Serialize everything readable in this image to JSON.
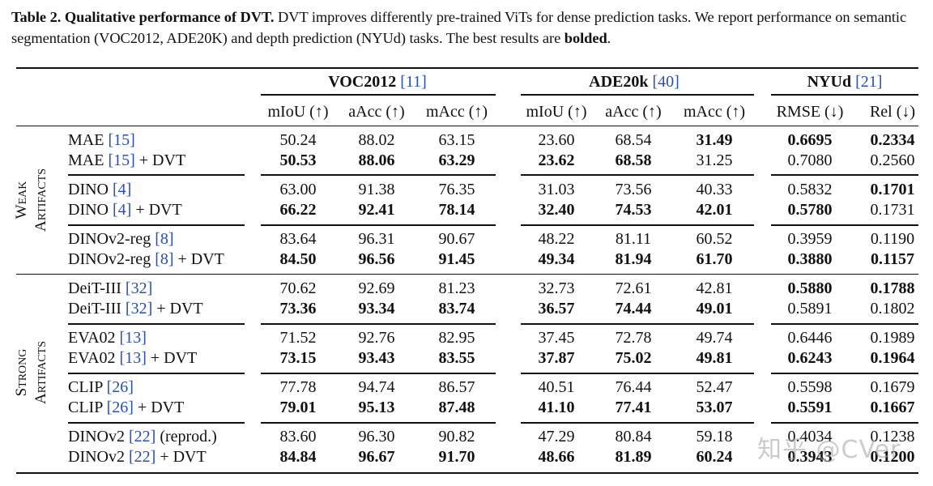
{
  "caption": {
    "label": "Table 2.",
    "title": "Qualitative performance of DVT.",
    "text_before_bold": "DVT improves differently pre-trained ViTs for dense prediction tasks. We report performance on semantic segmentation (VOC2012, ADE20K) and depth prediction (NYUd) tasks. The best results are",
    "bold_word": "bolded",
    "end": "."
  },
  "groups": [
    {
      "name": "VOC2012",
      "cite": "[11]"
    },
    {
      "name": "ADE20k",
      "cite": "[40]"
    },
    {
      "name": "NYUd",
      "cite": "[21]"
    }
  ],
  "metrics": [
    "mIoU (↑)",
    "aAcc (↑)",
    "mAcc (↑)",
    "mIoU (↑)",
    "aAcc (↑)",
    "mAcc (↑)",
    "RMSE (↓)",
    "Rel (↓)"
  ],
  "sections": [
    {
      "label_line1": "WEAK",
      "label_line2": "ARTIFACTS"
    },
    {
      "label_line1": "STRONG",
      "label_line2": "ARTIFACTS"
    }
  ],
  "rows": [
    {
      "name": "MAE",
      "cite": "[15]",
      "suffix": "",
      "values": [
        "50.24",
        "88.02",
        "63.15",
        "23.60",
        "68.54",
        "31.49",
        "0.6695",
        "0.2334"
      ],
      "bold": [
        false,
        false,
        false,
        false,
        false,
        true,
        true,
        true
      ]
    },
    {
      "name": "MAE",
      "cite": "[15]",
      "suffix": "+ DVT",
      "values": [
        "50.53",
        "88.06",
        "63.29",
        "23.62",
        "68.58",
        "31.25",
        "0.7080",
        "0.2560"
      ],
      "bold": [
        true,
        true,
        true,
        true,
        true,
        false,
        false,
        false
      ]
    },
    {
      "name": "DINO",
      "cite": "[4]",
      "suffix": "",
      "values": [
        "63.00",
        "91.38",
        "76.35",
        "31.03",
        "73.56",
        "40.33",
        "0.5832",
        "0.1701"
      ],
      "bold": [
        false,
        false,
        false,
        false,
        false,
        false,
        false,
        true
      ]
    },
    {
      "name": "DINO",
      "cite": "[4]",
      "suffix": "+ DVT",
      "values": [
        "66.22",
        "92.41",
        "78.14",
        "32.40",
        "74.53",
        "42.01",
        "0.5780",
        "0.1731"
      ],
      "bold": [
        true,
        true,
        true,
        true,
        true,
        true,
        true,
        false
      ]
    },
    {
      "name": "DINOv2-reg",
      "cite": "[8]",
      "suffix": "",
      "values": [
        "83.64",
        "96.31",
        "90.67",
        "48.22",
        "81.11",
        "60.52",
        "0.3959",
        "0.1190"
      ],
      "bold": [
        false,
        false,
        false,
        false,
        false,
        false,
        false,
        false
      ]
    },
    {
      "name": "DINOv2-reg",
      "cite": "[8]",
      "suffix": "+ DVT",
      "values": [
        "84.50",
        "96.56",
        "91.45",
        "49.34",
        "81.94",
        "61.70",
        "0.3880",
        "0.1157"
      ],
      "bold": [
        true,
        true,
        true,
        true,
        true,
        true,
        true,
        true
      ]
    },
    {
      "name": "DeiT-III",
      "cite": "[32]",
      "suffix": "",
      "values": [
        "70.62",
        "92.69",
        "81.23",
        "32.73",
        "72.61",
        "42.81",
        "0.5880",
        "0.1788"
      ],
      "bold": [
        false,
        false,
        false,
        false,
        false,
        false,
        true,
        true
      ]
    },
    {
      "name": "DeiT-III",
      "cite": "[32]",
      "suffix": "+ DVT",
      "values": [
        "73.36",
        "93.34",
        "83.74",
        "36.57",
        "74.44",
        "49.01",
        "0.5891",
        "0.1802"
      ],
      "bold": [
        true,
        true,
        true,
        true,
        true,
        true,
        false,
        false
      ]
    },
    {
      "name": "EVA02",
      "cite": "[13]",
      "suffix": "",
      "values": [
        "71.52",
        "92.76",
        "82.95",
        "37.45",
        "72.78",
        "49.74",
        "0.6446",
        "0.1989"
      ],
      "bold": [
        false,
        false,
        false,
        false,
        false,
        false,
        false,
        false
      ]
    },
    {
      "name": "EVA02",
      "cite": "[13]",
      "suffix": "+ DVT",
      "values": [
        "73.15",
        "93.43",
        "83.55",
        "37.87",
        "75.02",
        "49.81",
        "0.6243",
        "0.1964"
      ],
      "bold": [
        true,
        true,
        true,
        true,
        true,
        true,
        true,
        true
      ]
    },
    {
      "name": "CLIP",
      "cite": "[26]",
      "suffix": "",
      "values": [
        "77.78",
        "94.74",
        "86.57",
        "40.51",
        "76.44",
        "52.47",
        "0.5598",
        "0.1679"
      ],
      "bold": [
        false,
        false,
        false,
        false,
        false,
        false,
        false,
        false
      ]
    },
    {
      "name": "CLIP",
      "cite": "[26]",
      "suffix": "+ DVT",
      "values": [
        "79.01",
        "95.13",
        "87.48",
        "41.10",
        "77.41",
        "53.07",
        "0.5591",
        "0.1667"
      ],
      "bold": [
        true,
        true,
        true,
        true,
        true,
        true,
        true,
        true
      ]
    },
    {
      "name": "DINOv2",
      "cite": "[22]",
      "suffix": "(reprod.)",
      "values": [
        "83.60",
        "96.30",
        "90.82",
        "47.29",
        "80.84",
        "59.18",
        "0.4034",
        "0.1238"
      ],
      "bold": [
        false,
        false,
        false,
        false,
        false,
        false,
        false,
        false
      ]
    },
    {
      "name": "DINOv2",
      "cite": "[22]",
      "suffix": "+ DVT",
      "values": [
        "84.84",
        "96.67",
        "91.70",
        "48.66",
        "81.89",
        "60.24",
        "0.3943",
        "0.1200"
      ],
      "bold": [
        true,
        true,
        true,
        true,
        true,
        true,
        true,
        true
      ]
    }
  ],
  "watermark": "知乎 @CVer"
}
